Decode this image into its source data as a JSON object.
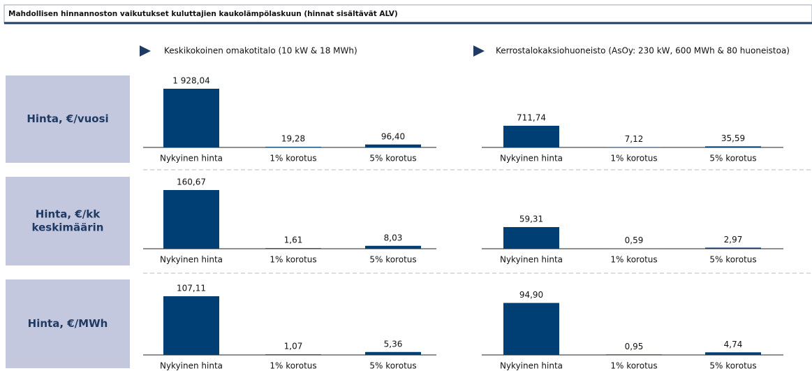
{
  "title": "Mahdollisen hinnannoston vaikutukset kuluttajien kaukolämpölaskuun (hinnat sisältävät ALV)",
  "column_titles": [
    "Keskikokoinen omakotitalo (10 kW & 18 MWh)",
    "Kerrostalokaksiohuoneisto (AsOy: 230 kW, 600 MWh & 80 huoneistoa)"
  ],
  "row_labels": [
    [
      "Hinta, €/vuosi"
    ],
    [
      "Hinta, €/kk",
      "keskimäärin"
    ],
    [
      "Hinta, €/MWh"
    ]
  ],
  "chart_data": [
    {
      "type": "bar",
      "color": "#003f73",
      "categories": [
        "Nykyinen hinta",
        "1% korotus",
        "5% korotus"
      ],
      "values": [
        1928.04,
        19.28,
        96.4
      ],
      "value_labels": [
        "1 928,04",
        "19,28",
        "96,40"
      ]
    },
    {
      "type": "bar",
      "color": "#003f73",
      "categories": [
        "Nykyinen hinta",
        "1% korotus",
        "5% korotus"
      ],
      "values": [
        711.74,
        7.12,
        35.59
      ],
      "value_labels": [
        "711,74",
        "7,12",
        "35,59"
      ]
    },
    {
      "type": "bar",
      "color": "#003f73",
      "categories": [
        "Nykyinen hinta",
        "1% korotus",
        "5% korotus"
      ],
      "values": [
        160.67,
        1.61,
        8.03
      ],
      "value_labels": [
        "160,67",
        "1,61",
        "8,03"
      ]
    },
    {
      "type": "bar",
      "color": "#003f73",
      "categories": [
        "Nykyinen hinta",
        "1% korotus",
        "5% korotus"
      ],
      "values": [
        59.31,
        0.59,
        2.97
      ],
      "value_labels": [
        "59,31",
        "0,59",
        "2,97"
      ]
    },
    {
      "type": "bar",
      "color": "#003f73",
      "categories": [
        "Nykyinen hinta",
        "1% korotus",
        "5% korotus"
      ],
      "values": [
        107.11,
        1.07,
        5.36
      ],
      "value_labels": [
        "107,11",
        "1,07",
        "5,36"
      ]
    },
    {
      "type": "bar",
      "color": "#003f73",
      "categories": [
        "Nykyinen hinta",
        "1% korotus",
        "5% korotus"
      ],
      "values": [
        94.9,
        0.95,
        4.74
      ],
      "value_labels": [
        "94,90",
        "0,95",
        "4,74"
      ]
    }
  ]
}
